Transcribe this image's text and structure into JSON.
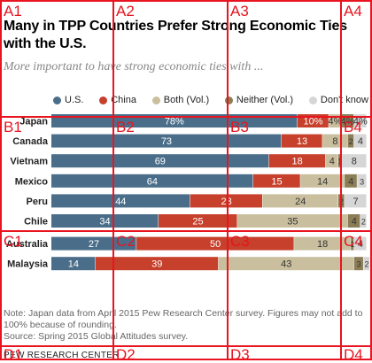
{
  "header": {
    "title": "Many in TPP Countries Prefer Strong Economic Ties with the U.S.",
    "subtitle": "More important to have strong economic ties with ..."
  },
  "chart_data": {
    "type": "bar",
    "stacked": true,
    "orientation": "horizontal",
    "categories": [
      "Japan",
      "Canada",
      "Vietnam",
      "Mexico",
      "Peru",
      "Chile",
      "Australia",
      "Malaysia"
    ],
    "series": [
      {
        "name": "U.S.",
        "color": "#4a6e8a",
        "values": [
          78,
          73,
          69,
          64,
          44,
          34,
          27,
          14
        ],
        "labels": [
          "78%",
          "73",
          "69",
          "64",
          "44",
          "34",
          "27",
          "14"
        ]
      },
      {
        "name": "China",
        "color": "#c6402b",
        "values": [
          10,
          13,
          18,
          15,
          23,
          25,
          50,
          39
        ],
        "labels": [
          "10%",
          "13",
          "18",
          "15",
          "23",
          "25",
          "50",
          "39"
        ]
      },
      {
        "name": "Both (Vol.)",
        "color": "#c9bf9e",
        "values": [
          4,
          8,
          4,
          14,
          24,
          35,
          18,
          43
        ],
        "labels": [
          "4%",
          "8",
          "4",
          "14",
          "24",
          "35",
          "18",
          "43"
        ]
      },
      {
        "name": "Neither (Vol.)",
        "color": "#8b7e56",
        "values": [
          4,
          2,
          1,
          4,
          2,
          4,
          1,
          3
        ],
        "labels": [
          "4%",
          "2",
          "1",
          "4",
          "2",
          "4",
          "1",
          "3"
        ]
      },
      {
        "name": "Don't know",
        "color": "#d6d6d6",
        "values": [
          4,
          4,
          8,
          3,
          7,
          2,
          4,
          2
        ],
        "labels": [
          "4%",
          "4",
          "8",
          "3",
          "7",
          "2",
          "4",
          "2"
        ]
      }
    ],
    "xlim": [
      0,
      100
    ],
    "legend": "top"
  },
  "footer": {
    "note": "Note: Japan data from April 2015 Pew Research Center survey. Figures may not add to 100% because of rounding.",
    "source": "Source: Spring 2015 Global Attitudes survey.",
    "brand": "PEW RESEARCH CENTER"
  },
  "grid_overlay": {
    "cells": [
      "A1",
      "A2",
      "A3",
      "A4",
      "B1",
      "B2",
      "B3",
      "B4",
      "C1",
      "C2",
      "C3",
      "C4",
      "D1",
      "D2",
      "D3",
      "D4"
    ]
  }
}
